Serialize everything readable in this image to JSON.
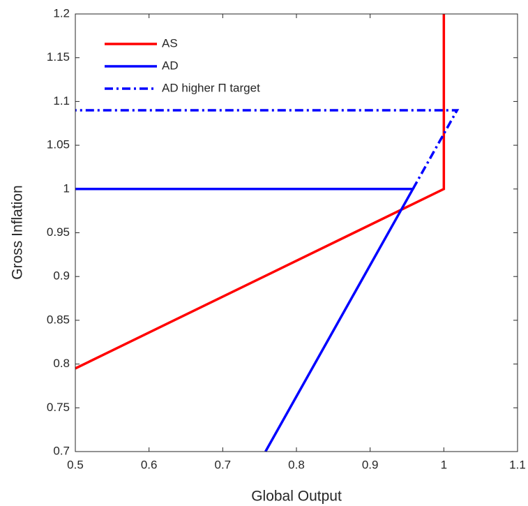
{
  "chart_data": {
    "type": "line",
    "x_label": "Global Output",
    "y_label": "Gross Inflation",
    "xlim": [
      0.5,
      1.1
    ],
    "xticks": [
      0.5,
      0.6,
      0.7,
      0.8,
      0.9,
      1,
      1.1
    ],
    "ylim": [
      0.7,
      1.2
    ],
    "yticks": [
      0.7,
      0.75,
      0.8,
      0.85,
      0.9,
      0.95,
      1,
      1.05,
      1.1,
      1.15,
      1.2
    ],
    "legend": "upper left",
    "series": [
      {
        "name": "AS",
        "color": "#ff0000",
        "style": "solid",
        "x": [
          0.5,
          1.0,
          1.0
        ],
        "values": [
          0.795,
          1.0,
          1.2
        ]
      },
      {
        "name": "AD",
        "color": "#0000ff",
        "style": "solid",
        "x": [
          0.758,
          0.958,
          0.5
        ],
        "values": [
          0.7,
          1.0,
          1.0
        ]
      },
      {
        "name": "AD higher Π target",
        "color": "#0000ff",
        "style": "dashdot",
        "x": [
          0.958,
          1.018,
          0.5
        ],
        "values": [
          1.0,
          1.09,
          1.09
        ]
      }
    ]
  }
}
